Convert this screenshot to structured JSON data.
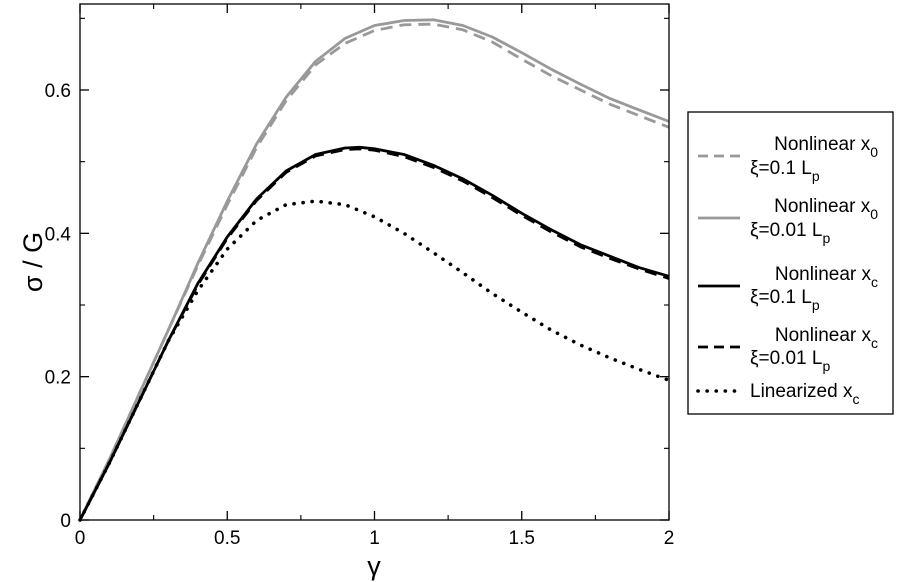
{
  "chart_data": {
    "type": "line",
    "xlabel": "γ",
    "ylabel": "σ / G",
    "xlim": [
      0,
      2
    ],
    "ylim": [
      0,
      0.72
    ],
    "x_ticks": [
      0,
      0.5,
      1,
      1.5,
      2
    ],
    "x_tick_labels": [
      "0",
      "0.5",
      "1",
      "1.5",
      "2"
    ],
    "y_ticks": [
      0,
      0.2,
      0.4,
      0.6
    ],
    "y_tick_labels": [
      "0",
      "0.2",
      "0.4",
      "0.6"
    ],
    "grid": false,
    "legend_position": "right, outside plot",
    "series": [
      {
        "label_line1": [
          "Nonlinear x",
          "0"
        ],
        "label_line2": [
          "ξ=0.1 L",
          "p"
        ],
        "color": "#999999",
        "style": "dashed",
        "points": [
          [
            0,
            0
          ],
          [
            0.1,
            0.085
          ],
          [
            0.2,
            0.175
          ],
          [
            0.3,
            0.265
          ],
          [
            0.4,
            0.355
          ],
          [
            0.5,
            0.44
          ],
          [
            0.6,
            0.52
          ],
          [
            0.7,
            0.585
          ],
          [
            0.8,
            0.635
          ],
          [
            0.9,
            0.665
          ],
          [
            1.0,
            0.683
          ],
          [
            1.1,
            0.691
          ],
          [
            1.2,
            0.692
          ],
          [
            1.3,
            0.684
          ],
          [
            1.4,
            0.667
          ],
          [
            1.5,
            0.643
          ],
          [
            1.6,
            0.62
          ],
          [
            1.7,
            0.6
          ],
          [
            1.8,
            0.58
          ],
          [
            1.9,
            0.564
          ],
          [
            2.0,
            0.548
          ]
        ]
      },
      {
        "label_line1": [
          "Nonlinear x",
          "0"
        ],
        "label_line2": [
          "ξ=0.01 L",
          "p"
        ],
        "color": "#999999",
        "style": "solid",
        "points": [
          [
            0,
            0
          ],
          [
            0.1,
            0.085
          ],
          [
            0.2,
            0.175
          ],
          [
            0.3,
            0.265
          ],
          [
            0.4,
            0.358
          ],
          [
            0.5,
            0.445
          ],
          [
            0.6,
            0.525
          ],
          [
            0.7,
            0.59
          ],
          [
            0.8,
            0.64
          ],
          [
            0.9,
            0.672
          ],
          [
            1.0,
            0.69
          ],
          [
            1.1,
            0.697
          ],
          [
            1.2,
            0.698
          ],
          [
            1.3,
            0.69
          ],
          [
            1.4,
            0.674
          ],
          [
            1.5,
            0.652
          ],
          [
            1.6,
            0.629
          ],
          [
            1.7,
            0.608
          ],
          [
            1.8,
            0.588
          ],
          [
            1.9,
            0.572
          ],
          [
            2.0,
            0.556
          ]
        ]
      },
      {
        "label_line1": [
          "Nonlinear x",
          "c"
        ],
        "label_line2": [
          "ξ=0.1 L",
          "p"
        ],
        "color": "#000000",
        "style": "solid",
        "points": [
          [
            0,
            0
          ],
          [
            0.1,
            0.08
          ],
          [
            0.2,
            0.165
          ],
          [
            0.3,
            0.25
          ],
          [
            0.4,
            0.33
          ],
          [
            0.5,
            0.395
          ],
          [
            0.6,
            0.448
          ],
          [
            0.7,
            0.487
          ],
          [
            0.8,
            0.51
          ],
          [
            0.9,
            0.519
          ],
          [
            0.95,
            0.52
          ],
          [
            1.0,
            0.518
          ],
          [
            1.1,
            0.51
          ],
          [
            1.2,
            0.495
          ],
          [
            1.3,
            0.476
          ],
          [
            1.4,
            0.453
          ],
          [
            1.5,
            0.428
          ],
          [
            1.6,
            0.405
          ],
          [
            1.7,
            0.384
          ],
          [
            1.8,
            0.368
          ],
          [
            1.9,
            0.352
          ],
          [
            2.0,
            0.34
          ]
        ]
      },
      {
        "label_line1": [
          "Nonlinear x",
          "c"
        ],
        "label_line2": [
          "ξ=0.01 L",
          "p"
        ],
        "color": "#000000",
        "style": "dashed",
        "points": [
          [
            0,
            0
          ],
          [
            0.1,
            0.08
          ],
          [
            0.2,
            0.165
          ],
          [
            0.3,
            0.25
          ],
          [
            0.4,
            0.328
          ],
          [
            0.5,
            0.393
          ],
          [
            0.6,
            0.446
          ],
          [
            0.7,
            0.485
          ],
          [
            0.8,
            0.508
          ],
          [
            0.9,
            0.517
          ],
          [
            0.95,
            0.518
          ],
          [
            1.0,
            0.516
          ],
          [
            1.1,
            0.507
          ],
          [
            1.2,
            0.492
          ],
          [
            1.3,
            0.473
          ],
          [
            1.4,
            0.45
          ],
          [
            1.5,
            0.425
          ],
          [
            1.6,
            0.402
          ],
          [
            1.7,
            0.381
          ],
          [
            1.8,
            0.365
          ],
          [
            1.9,
            0.35
          ],
          [
            2.0,
            0.337
          ]
        ]
      },
      {
        "label_line1": [
          "Linearized x",
          "c"
        ],
        "label_line2": null,
        "color": "#000000",
        "style": "dotted",
        "points": [
          [
            0,
            0
          ],
          [
            0.1,
            0.08
          ],
          [
            0.2,
            0.165
          ],
          [
            0.3,
            0.25
          ],
          [
            0.4,
            0.32
          ],
          [
            0.5,
            0.378
          ],
          [
            0.6,
            0.418
          ],
          [
            0.7,
            0.44
          ],
          [
            0.8,
            0.445
          ],
          [
            0.9,
            0.44
          ],
          [
            1.0,
            0.423
          ],
          [
            1.1,
            0.4
          ],
          [
            1.2,
            0.373
          ],
          [
            1.3,
            0.345
          ],
          [
            1.4,
            0.316
          ],
          [
            1.5,
            0.29
          ],
          [
            1.6,
            0.265
          ],
          [
            1.7,
            0.244
          ],
          [
            1.8,
            0.226
          ],
          [
            1.9,
            0.21
          ],
          [
            2.0,
            0.195
          ]
        ]
      }
    ]
  }
}
